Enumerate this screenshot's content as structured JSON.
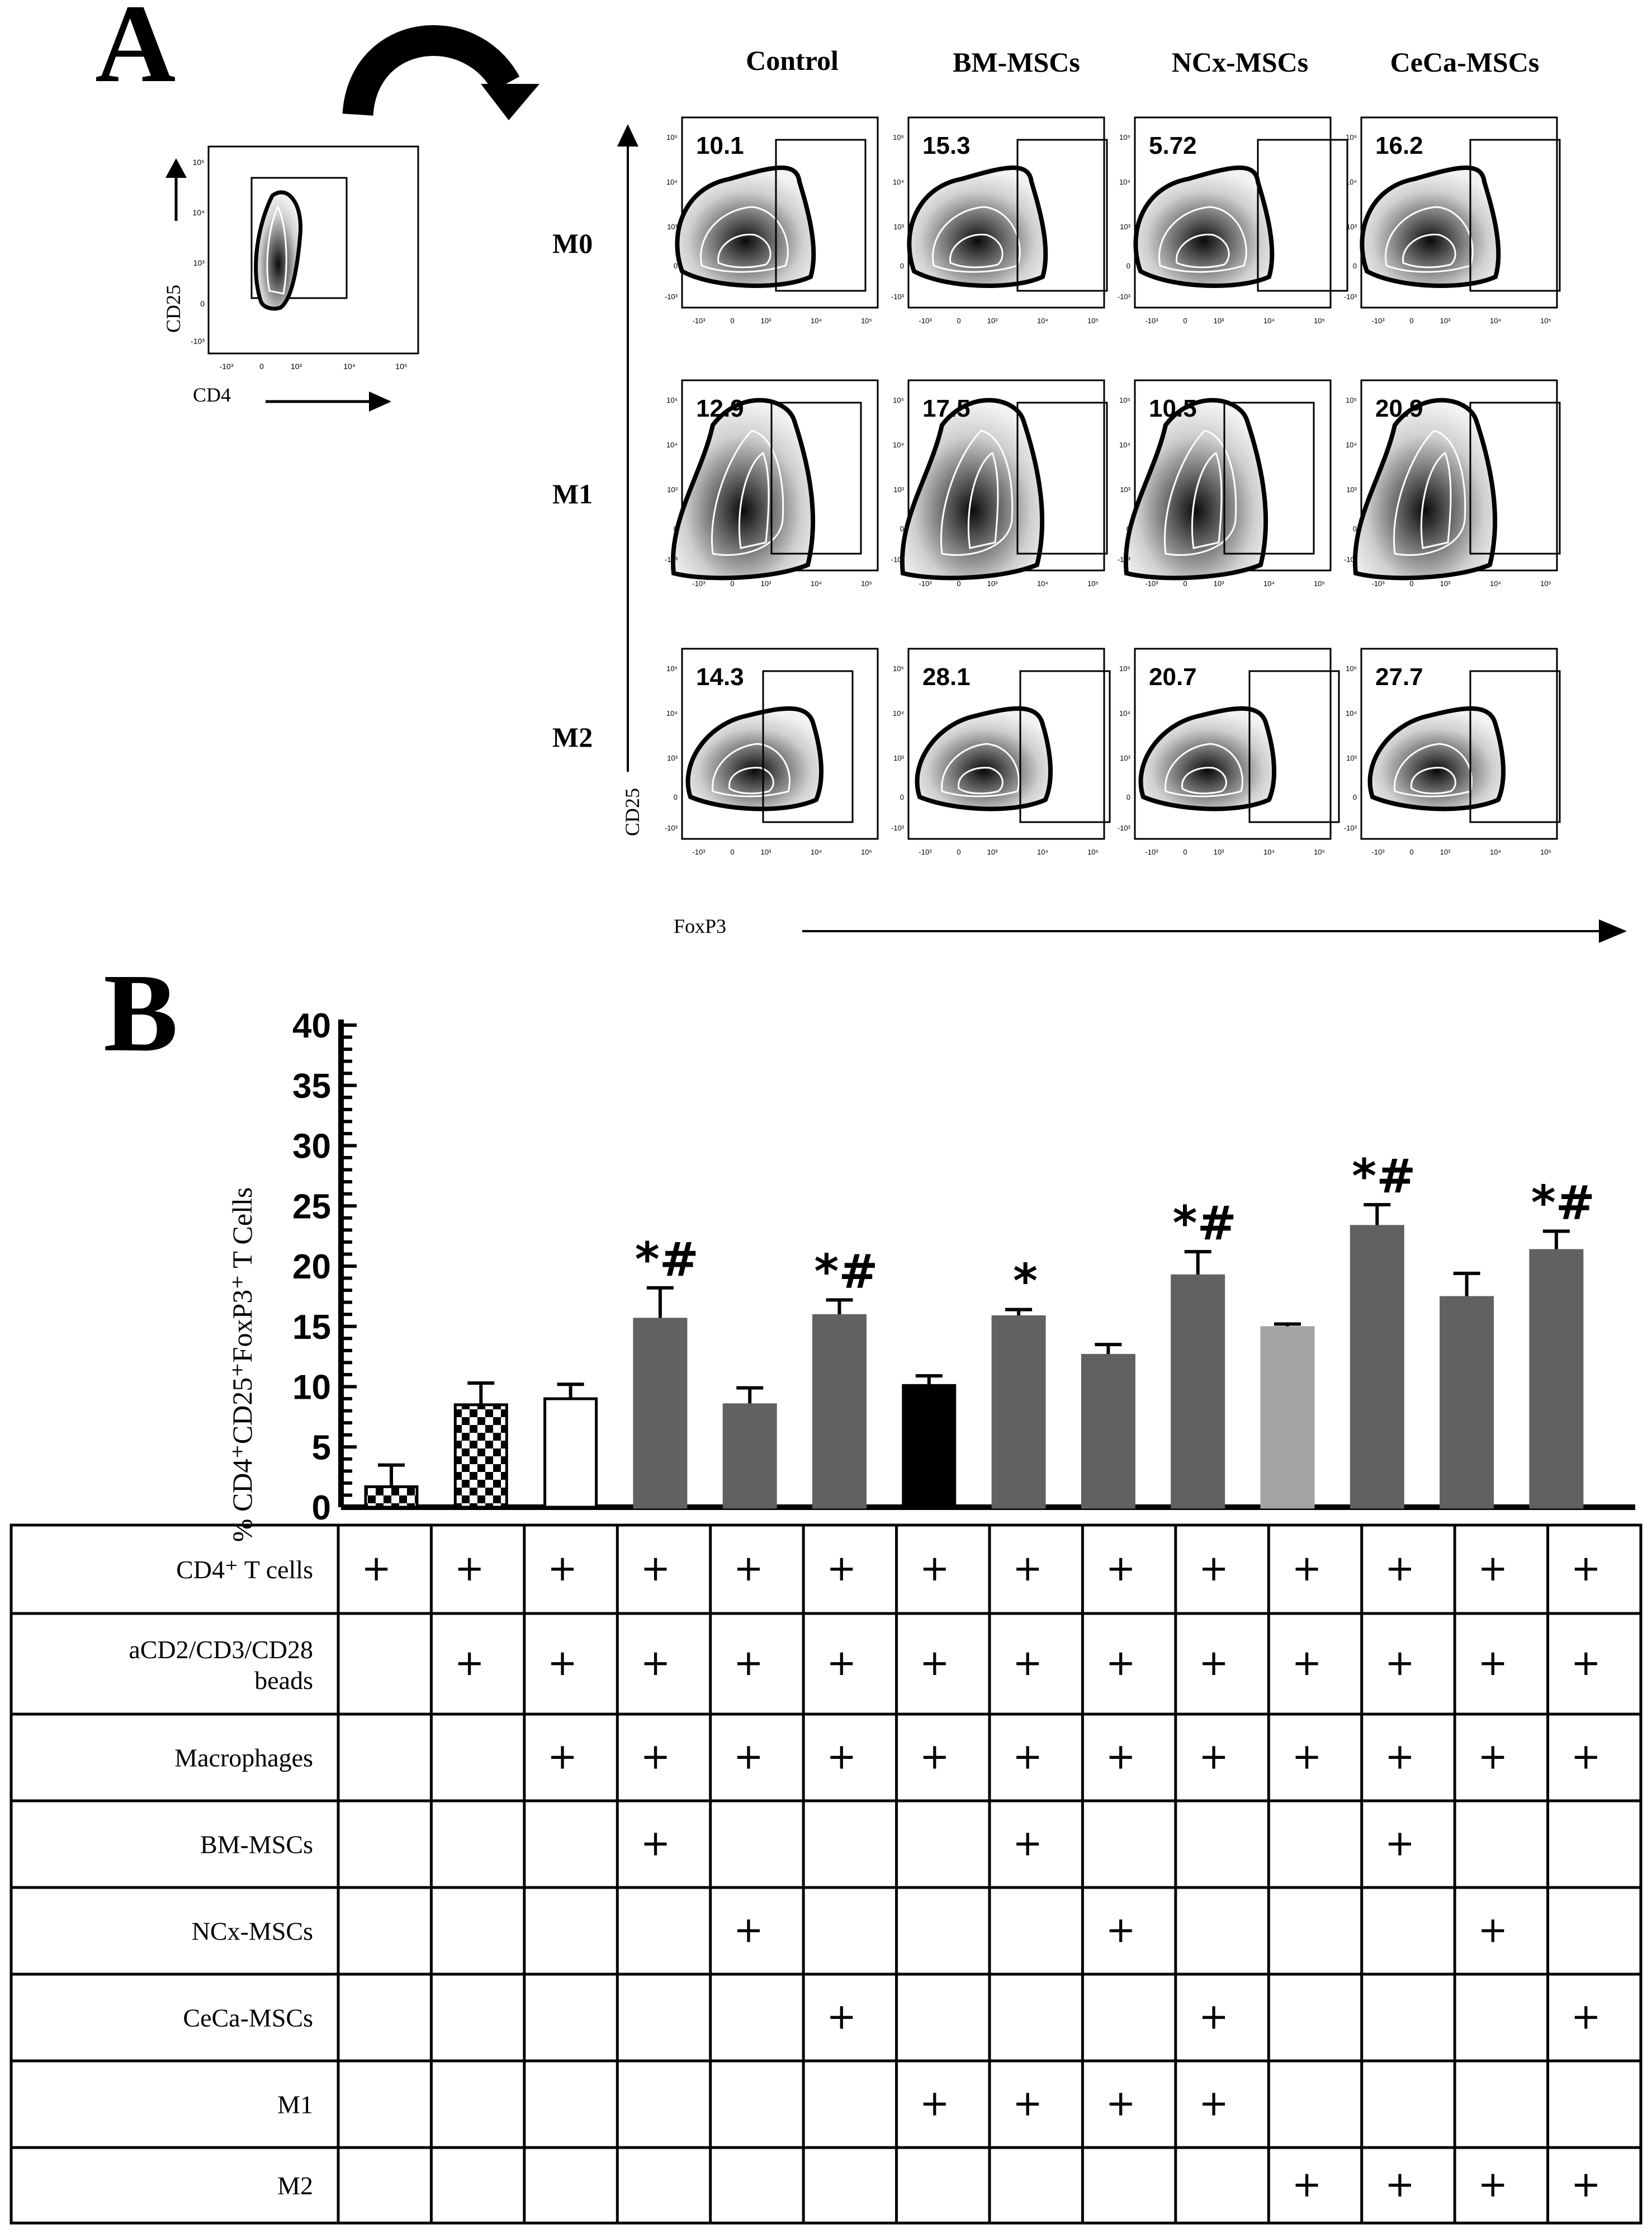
{
  "panel_a": {
    "label": "A",
    "gating_plot": {
      "xlabel": "CD4",
      "ylabel": "CD25",
      "x_ticks": [
        "-10³",
        "0",
        "10³",
        "10⁴",
        "10⁵"
      ],
      "y_ticks": [
        "10⁵",
        "10⁴",
        "10³",
        "0",
        "-10³"
      ]
    },
    "columns": [
      "Control",
      "BM-MSCs",
      "NCx-MSCs",
      "CeCa-MSCs"
    ],
    "rows": [
      "M0",
      "M1",
      "M2"
    ],
    "percentages": [
      [
        "10.1",
        "15.3",
        "5.72",
        "16.2"
      ],
      [
        "12.9",
        "17.5",
        "10.5",
        "20.9"
      ],
      [
        "14.3",
        "28.1",
        "20.7",
        "27.7"
      ]
    ],
    "x_ticks": [
      "-10³",
      "0",
      "10³",
      "10⁴",
      "10⁵"
    ],
    "y_ticks": [
      "10⁵",
      "10⁴",
      "10³",
      "0",
      "-10³"
    ],
    "xlabel": "FoxP3",
    "ylabel": "CD25"
  },
  "chart_data": {
    "label": "B",
    "type": "bar",
    "ylabel": "% CD4⁺CD25⁺FoxP3⁺ T Cells",
    "ylim": [
      0,
      40
    ],
    "y_ticks": [
      0,
      5,
      10,
      15,
      20,
      25,
      30,
      35,
      40
    ],
    "values": [
      1.7,
      8.5,
      9.0,
      15.6,
      8.5,
      15.9,
      10.1,
      15.8,
      12.6,
      19.2,
      14.9,
      23.3,
      17.4,
      21.3
    ],
    "errors": [
      1.8,
      1.8,
      1.2,
      2.6,
      1.4,
      1.3,
      0.8,
      0.6,
      0.9,
      2.0,
      0.3,
      1.8,
      2.0,
      1.6
    ],
    "annotations": [
      "",
      "",
      "",
      "*#",
      "",
      "*#",
      "",
      "*",
      "",
      "*#",
      "",
      "*#",
      "",
      "*#"
    ],
    "fills": [
      "checker",
      "checker",
      "#ffffff",
      "#616161",
      "#616161",
      "#616161",
      "#000000",
      "#616161",
      "#616161",
      "#616161",
      "#a3a3a6",
      "#616161",
      "#616161",
      "#616161"
    ]
  },
  "table": {
    "row_labels": [
      "CD4⁺ T cells",
      "aCD2/CD3/CD28 beads",
      "Macrophages",
      "BM-MSCs",
      "NCx-MSCs",
      "CeCa-MSCs",
      "M1",
      "M2"
    ],
    "symbol": "+",
    "marks": [
      [
        1,
        1,
        1,
        1,
        1,
        1,
        1,
        1,
        1,
        1,
        1,
        1,
        1,
        1
      ],
      [
        0,
        1,
        1,
        1,
        1,
        1,
        1,
        1,
        1,
        1,
        1,
        1,
        1,
        1
      ],
      [
        0,
        0,
        1,
        1,
        1,
        1,
        1,
        1,
        1,
        1,
        1,
        1,
        1,
        1
      ],
      [
        0,
        0,
        0,
        1,
        0,
        0,
        0,
        1,
        0,
        0,
        0,
        1,
        0,
        0
      ],
      [
        0,
        0,
        0,
        0,
        1,
        0,
        0,
        0,
        1,
        0,
        0,
        0,
        1,
        0
      ],
      [
        0,
        0,
        0,
        0,
        0,
        1,
        0,
        0,
        0,
        1,
        0,
        0,
        0,
        1
      ],
      [
        0,
        0,
        0,
        0,
        0,
        0,
        1,
        1,
        1,
        1,
        0,
        0,
        0,
        0
      ],
      [
        0,
        0,
        0,
        0,
        0,
        0,
        0,
        0,
        0,
        0,
        1,
        1,
        1,
        1
      ]
    ]
  }
}
